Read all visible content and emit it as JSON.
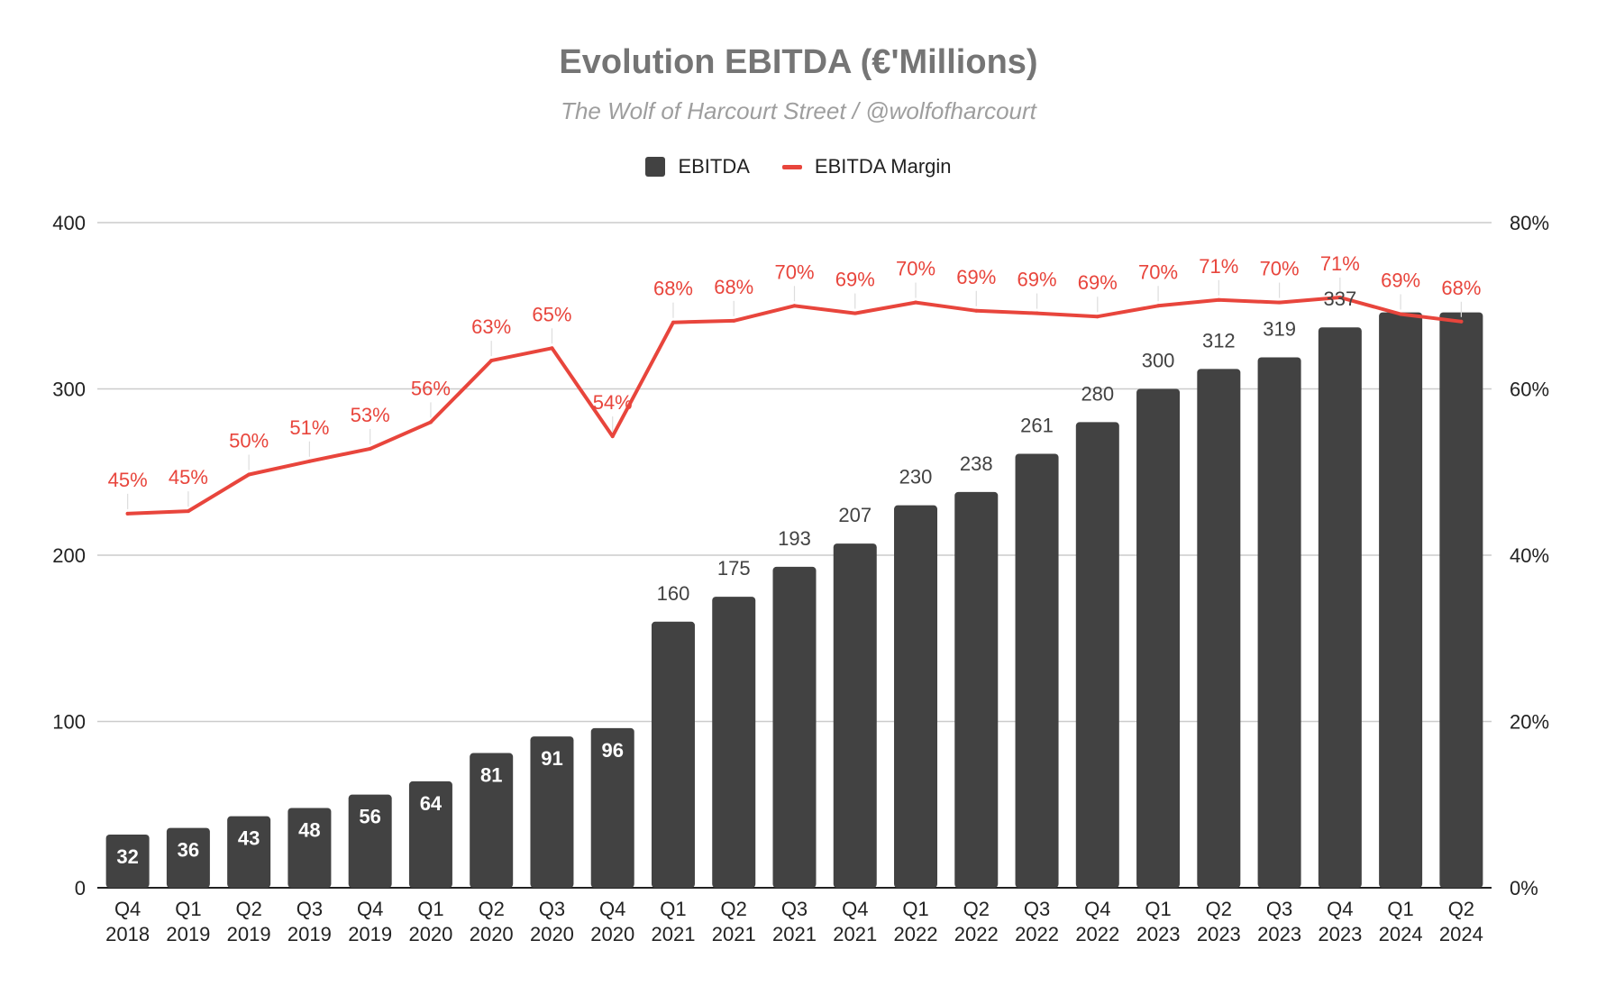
{
  "chart_data": {
    "type": "bar",
    "title": "Evolution EBITDA (€'Millions)",
    "subtitle": "The Wolf of Harcourt Street / @wolfofharcourt",
    "categories": [
      [
        "Q4",
        "2018"
      ],
      [
        "Q1",
        "2019"
      ],
      [
        "Q2",
        "2019"
      ],
      [
        "Q3",
        "2019"
      ],
      [
        "Q4",
        "2019"
      ],
      [
        "Q1",
        "2020"
      ],
      [
        "Q2",
        "2020"
      ],
      [
        "Q3",
        "2020"
      ],
      [
        "Q4",
        "2020"
      ],
      [
        "Q1",
        "2021"
      ],
      [
        "Q2",
        "2021"
      ],
      [
        "Q3",
        "2021"
      ],
      [
        "Q4",
        "2021"
      ],
      [
        "Q1",
        "2022"
      ],
      [
        "Q2",
        "2022"
      ],
      [
        "Q3",
        "2022"
      ],
      [
        "Q4",
        "2022"
      ],
      [
        "Q1",
        "2023"
      ],
      [
        "Q2",
        "2023"
      ],
      [
        "Q3",
        "2023"
      ],
      [
        "Q4",
        "2023"
      ],
      [
        "Q1",
        "2024"
      ],
      [
        "Q2",
        "2024"
      ]
    ],
    "series": [
      {
        "name": "EBITDA",
        "type": "bar",
        "axis": "left",
        "values": [
          32,
          36,
          43,
          48,
          56,
          64,
          81,
          91,
          96,
          160,
          175,
          193,
          207,
          230,
          238,
          261,
          280,
          300,
          312,
          319,
          337,
          346,
          346
        ],
        "labels": [
          "32",
          "36",
          "43",
          "48",
          "56",
          "64",
          "81",
          "91",
          "96",
          "160",
          "175",
          "193",
          "207",
          "230",
          "238",
          "261",
          "280",
          "300",
          "312",
          "319",
          "337",
          "",
          ""
        ]
      },
      {
        "name": "EBITDA Margin",
        "type": "line",
        "axis": "right",
        "values": [
          45,
          45.3,
          49.7,
          51.3,
          52.8,
          56,
          63.4,
          64.9,
          54.3,
          68,
          68.2,
          70,
          69.1,
          70.4,
          69.4,
          69.1,
          68.7,
          70,
          70.7,
          70.4,
          71,
          69,
          68.1
        ],
        "labels": [
          "45%",
          "45%",
          "50%",
          "51%",
          "53%",
          "56%",
          "63%",
          "65%",
          "54%",
          "68%",
          "68%",
          "70%",
          "69%",
          "70%",
          "69%",
          "69%",
          "69%",
          "70%",
          "71%",
          "70%",
          "71%",
          "69%",
          "68%"
        ]
      }
    ],
    "yleft": {
      "lim": [
        0,
        400
      ],
      "ticks": [
        "0",
        "100",
        "200",
        "300",
        "400"
      ],
      "values": [
        0,
        100,
        200,
        300,
        400
      ]
    },
    "yright": {
      "lim": [
        0,
        80
      ],
      "ticks": [
        "0%",
        "20%",
        "40%",
        "60%",
        "80%"
      ],
      "values": [
        0,
        20,
        40,
        60,
        80
      ]
    },
    "grid": true,
    "legend_position": "top",
    "colors": {
      "bar": "#424242",
      "line": "#e8453c",
      "grid": "#cccccc",
      "bar_label_inside": "#ffffff",
      "bar_label_outside": "#424242"
    }
  }
}
